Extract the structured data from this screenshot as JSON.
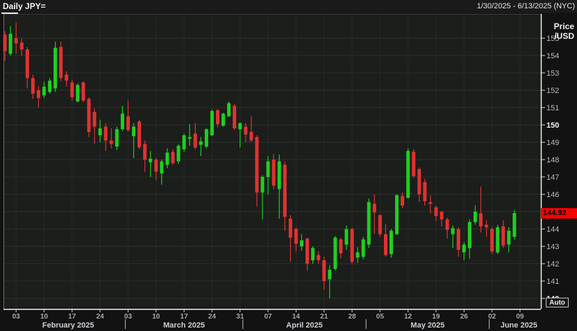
{
  "title_bar": {
    "title": "Daily JPY=",
    "date_range": "1/30/2025 - 6/13/2025 (NYC)"
  },
  "price_axis": {
    "unit_line1": "Price",
    "unit_line2": "/USD",
    "bold_ticks": [
      150,
      140
    ],
    "current_price": "144.92",
    "auto_button_label": "Auto"
  },
  "colors": {
    "up": "#1fcf1f",
    "down": "#df3333",
    "background": "#121212",
    "plot_background": "#1b1e1b",
    "grid_horizontal": "#2e322e",
    "grid_vertical": "#272b27",
    "axis_line": "#f2f2f2",
    "tick_text": "#bdbdbd",
    "bold_tick_text": "#f5f5f5",
    "date_tick_text": "#a8a8a8",
    "month_text": "#c9ced6",
    "current_price_bg": "#ff0000",
    "current_price_text": "#000000"
  },
  "chart_data": {
    "type": "candlestick",
    "title": "Daily JPY=",
    "symbol": "JPY=",
    "interval": "Daily",
    "date_range_label": "1/30/2025 - 6/13/2025 (NYC)",
    "ylabel": "Price /USD",
    "ylim": [
      139.4,
      156.2
    ],
    "y_ticks": [
      155,
      154,
      153,
      152,
      151,
      150,
      149,
      148,
      147,
      146,
      145,
      144,
      143,
      142,
      141,
      140
    ],
    "grid": true,
    "last_price": 144.92,
    "x_axis_end_date": "2025-06-13",
    "week_ticks": [
      {
        "label": "03",
        "day": 2
      },
      {
        "label": "10",
        "day": 7
      },
      {
        "label": "17",
        "day": 12
      },
      {
        "label": "24",
        "day": 17
      },
      {
        "label": "03",
        "day": 22
      },
      {
        "label": "10",
        "day": 27
      },
      {
        "label": "17",
        "day": 32
      },
      {
        "label": "24",
        "day": 37
      },
      {
        "label": "31",
        "day": 42
      },
      {
        "label": "07",
        "day": 47
      },
      {
        "label": "14",
        "day": 52
      },
      {
        "label": "21",
        "day": 57
      },
      {
        "label": "28",
        "day": 62
      },
      {
        "label": "05",
        "day": 67
      },
      {
        "label": "12",
        "day": 72
      },
      {
        "label": "19",
        "day": 77
      },
      {
        "label": "26",
        "day": 82
      },
      {
        "label": "02",
        "day": 87
      },
      {
        "label": "09",
        "day": 92
      }
    ],
    "months": [
      {
        "label": "February 2025",
        "center_day": 11.3,
        "separator_day": null
      },
      {
        "label": "March 2025",
        "center_day": 32,
        "separator_day": 21.5
      },
      {
        "label": "April 2025",
        "center_day": 53.5,
        "separator_day": 42.5
      },
      {
        "label": "May 2025",
        "center_day": 75.5,
        "separator_day": 64.5
      },
      {
        "label": "June 2025",
        "center_day": 91.8,
        "separator_day": 86.5
      }
    ],
    "columns": [
      "date",
      "open",
      "high",
      "low",
      "close"
    ],
    "candles": [
      [
        "2025-01-30",
        155.2,
        155.4,
        153.7,
        154.25
      ],
      [
        "2025-01-31",
        154.1,
        155.7,
        154.0,
        155.25
      ],
      [
        "2025-02-03",
        155.0,
        155.9,
        154.1,
        154.7
      ],
      [
        "2025-02-04",
        154.75,
        155.0,
        154.0,
        154.35
      ],
      [
        "2025-02-05",
        154.35,
        154.5,
        152.1,
        152.7
      ],
      [
        "2025-02-06",
        152.7,
        152.9,
        151.5,
        151.8
      ],
      [
        "2025-02-07",
        152.0,
        152.25,
        151.0,
        151.55
      ],
      [
        "2025-02-10",
        151.7,
        152.5,
        151.55,
        152.2
      ],
      [
        "2025-02-11",
        151.9,
        152.7,
        151.8,
        152.55
      ],
      [
        "2025-02-12",
        152.1,
        154.8,
        151.9,
        154.45
      ],
      [
        "2025-02-13",
        154.5,
        154.8,
        152.5,
        152.7
      ],
      [
        "2025-02-14",
        152.9,
        153.1,
        152.2,
        152.55
      ],
      [
        "2025-02-17",
        152.45,
        152.6,
        151.4,
        151.6
      ],
      [
        "2025-02-18",
        151.35,
        152.4,
        151.3,
        152.3
      ],
      [
        "2025-02-19",
        152.45,
        152.5,
        151.3,
        151.4
      ],
      [
        "2025-02-20",
        151.5,
        151.6,
        149.3,
        149.6
      ],
      [
        "2025-02-21",
        150.75,
        150.95,
        148.9,
        149.9
      ],
      [
        "2025-02-24",
        149.4,
        150.3,
        149.0,
        149.8
      ],
      [
        "2025-02-25",
        149.9,
        150.1,
        148.5,
        149.1
      ],
      [
        "2025-02-26",
        149.1,
        149.8,
        148.65,
        148.9
      ],
      [
        "2025-02-27",
        148.75,
        149.9,
        148.55,
        149.75
      ],
      [
        "2025-02-28",
        149.75,
        151.1,
        149.65,
        150.65
      ],
      [
        "2025-03-03",
        150.5,
        151.4,
        149.6,
        149.7
      ],
      [
        "2025-03-04",
        149.35,
        150.1,
        148.1,
        149.9
      ],
      [
        "2025-03-05",
        150.2,
        150.3,
        148.6,
        148.7
      ],
      [
        "2025-03-06",
        148.9,
        149.1,
        147.3,
        148.0
      ],
      [
        "2025-03-07",
        147.85,
        148.5,
        147.0,
        148.05
      ],
      [
        "2025-03-10",
        148.0,
        148.1,
        146.8,
        147.3
      ],
      [
        "2025-03-11",
        147.2,
        148.0,
        146.55,
        147.9
      ],
      [
        "2025-03-12",
        147.7,
        148.65,
        147.5,
        148.4
      ],
      [
        "2025-03-13",
        148.45,
        148.6,
        147.7,
        147.8
      ],
      [
        "2025-03-14",
        147.9,
        148.9,
        147.75,
        148.8
      ],
      [
        "2025-03-17",
        148.6,
        149.5,
        148.45,
        149.4
      ],
      [
        "2025-03-18",
        149.2,
        150.05,
        148.8,
        149.3
      ],
      [
        "2025-03-19",
        149.5,
        150.1,
        148.6,
        148.7
      ],
      [
        "2025-03-20",
        148.85,
        149.3,
        148.2,
        149.05
      ],
      [
        "2025-03-21",
        148.75,
        149.8,
        148.65,
        149.75
      ],
      [
        "2025-03-24",
        149.4,
        150.9,
        149.35,
        150.8
      ],
      [
        "2025-03-25",
        150.85,
        150.9,
        149.85,
        150.05
      ],
      [
        "2025-03-26",
        149.95,
        150.7,
        149.9,
        150.65
      ],
      [
        "2025-03-27",
        150.5,
        151.35,
        150.45,
        151.25
      ],
      [
        "2025-03-28",
        151.1,
        151.2,
        149.7,
        149.8
      ],
      [
        "2025-03-31",
        149.75,
        150.15,
        148.7,
        150.1
      ],
      [
        "2025-04-01",
        149.9,
        150.1,
        149.0,
        149.45
      ],
      [
        "2025-04-02",
        149.6,
        150.5,
        149.0,
        149.1
      ],
      [
        "2025-04-03",
        149.3,
        149.4,
        145.3,
        146.1
      ],
      [
        "2025-04-04",
        146.1,
        147.1,
        144.55,
        147.0
      ],
      [
        "2025-04-07",
        147.0,
        148.2,
        146.0,
        147.9
      ],
      [
        "2025-04-08",
        148.0,
        148.3,
        146.3,
        146.5
      ],
      [
        "2025-04-09",
        146.3,
        148.3,
        144.6,
        147.9
      ],
      [
        "2025-04-10",
        147.7,
        147.9,
        143.9,
        144.7
      ],
      [
        "2025-04-11",
        144.6,
        144.8,
        142.1,
        143.5
      ],
      [
        "2025-04-14",
        144.0,
        144.1,
        142.7,
        143.15
      ],
      [
        "2025-04-15",
        143.0,
        143.7,
        142.75,
        143.35
      ],
      [
        "2025-04-16",
        143.45,
        143.5,
        141.6,
        142.0
      ],
      [
        "2025-04-17",
        142.2,
        143.0,
        142.0,
        142.9
      ],
      [
        "2025-04-18",
        142.5,
        142.7,
        142.0,
        142.2
      ],
      [
        "2025-04-21",
        142.2,
        142.4,
        140.5,
        141.0
      ],
      [
        "2025-04-22",
        141.1,
        141.9,
        140.0,
        141.65
      ],
      [
        "2025-04-23",
        141.7,
        143.6,
        141.6,
        143.5
      ],
      [
        "2025-04-24",
        143.4,
        143.5,
        142.3,
        142.6
      ],
      [
        "2025-04-25",
        143.1,
        144.2,
        142.8,
        144.0
      ],
      [
        "2025-04-28",
        144.0,
        144.1,
        141.95,
        142.1
      ],
      [
        "2025-04-29",
        142.35,
        142.95,
        142.05,
        142.65
      ],
      [
        "2025-04-30",
        142.4,
        143.55,
        142.25,
        143.4
      ],
      [
        "2025-05-01",
        143.1,
        145.75,
        142.9,
        145.55
      ],
      [
        "2025-05-02",
        145.45,
        146.0,
        143.7,
        144.95
      ],
      [
        "2025-05-05",
        144.8,
        144.85,
        143.55,
        143.7
      ],
      [
        "2025-05-06",
        143.7,
        144.3,
        142.4,
        142.5
      ],
      [
        "2025-05-07",
        142.55,
        144.0,
        142.35,
        143.9
      ],
      [
        "2025-05-08",
        143.7,
        146.0,
        143.65,
        145.95
      ],
      [
        "2025-05-09",
        145.9,
        146.1,
        145.2,
        145.35
      ],
      [
        "2025-05-12",
        145.8,
        148.65,
        145.75,
        148.5
      ],
      [
        "2025-05-13",
        148.45,
        148.6,
        146.95,
        147.05
      ],
      [
        "2025-05-14",
        147.45,
        147.55,
        145.55,
        146.0
      ],
      [
        "2025-05-15",
        146.7,
        146.9,
        145.35,
        145.6
      ],
      [
        "2025-05-16",
        145.55,
        145.95,
        144.9,
        145.45
      ],
      [
        "2025-05-19",
        145.25,
        145.35,
        144.45,
        144.75
      ],
      [
        "2025-05-20",
        145.0,
        145.05,
        144.15,
        144.55
      ],
      [
        "2025-05-21",
        144.55,
        144.65,
        143.45,
        143.95
      ],
      [
        "2025-05-22",
        143.7,
        144.2,
        142.9,
        144.05
      ],
      [
        "2025-05-23",
        144.0,
        144.1,
        142.4,
        142.8
      ],
      [
        "2025-05-26",
        142.65,
        143.25,
        142.2,
        143.1
      ],
      [
        "2025-05-27",
        142.9,
        144.55,
        142.3,
        144.4
      ],
      [
        "2025-05-28",
        144.4,
        145.35,
        144.25,
        145.0
      ],
      [
        "2025-05-29",
        144.9,
        146.45,
        143.8,
        144.15
      ],
      [
        "2025-05-30",
        144.25,
        144.5,
        143.55,
        144.1
      ],
      [
        "2025-06-02",
        144.0,
        144.1,
        142.55,
        142.7
      ],
      [
        "2025-06-03",
        142.65,
        144.25,
        142.55,
        144.1
      ],
      [
        "2025-06-04",
        144.15,
        144.5,
        142.9,
        143.05
      ],
      [
        "2025-06-05",
        143.1,
        144.1,
        142.65,
        143.9
      ],
      [
        "2025-06-06",
        143.55,
        145.1,
        143.4,
        144.92
      ]
    ]
  }
}
